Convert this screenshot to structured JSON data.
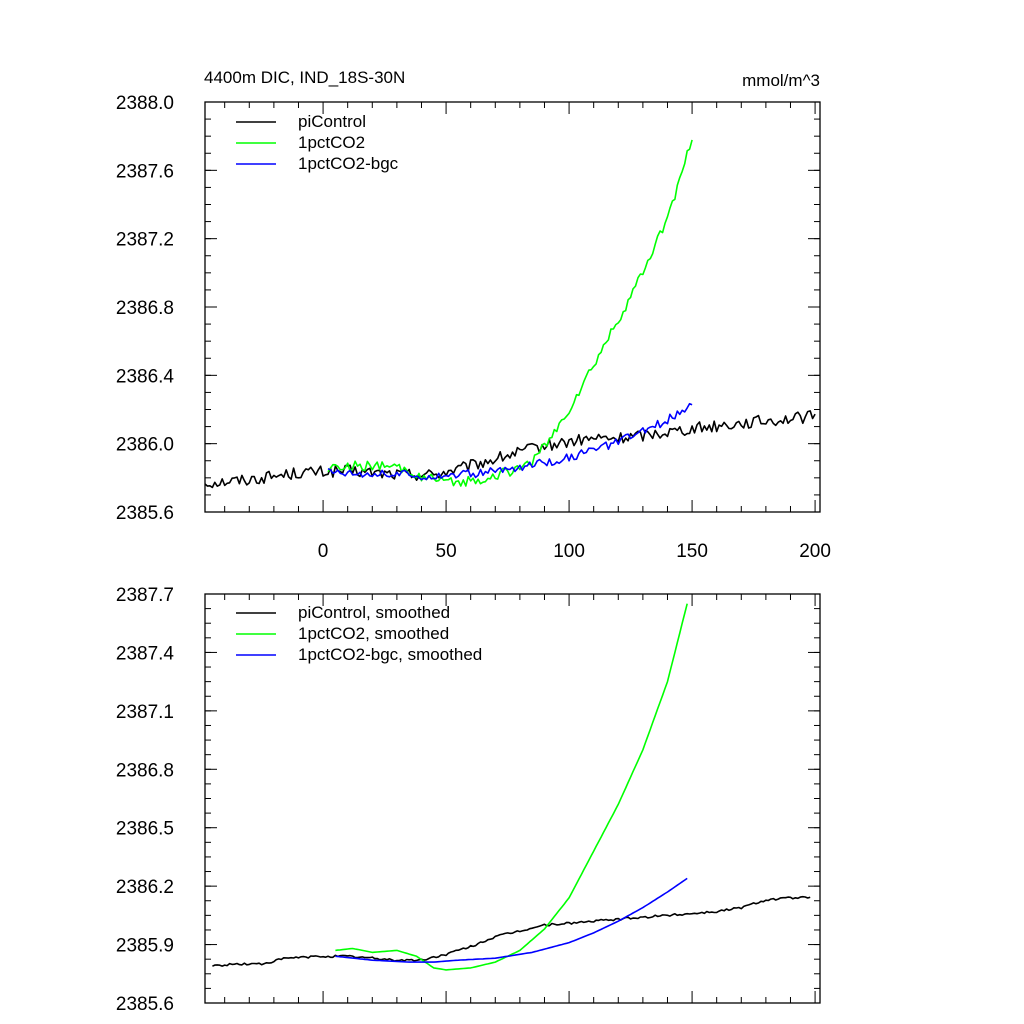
{
  "chart_data": [
    {
      "type": "line",
      "title": "4400m DIC, IND_18S-30N",
      "units": "mmol/m^3",
      "xlim": [
        -48,
        202
      ],
      "ylim": [
        2385.6,
        2388.0
      ],
      "x_ticks": [
        0,
        50,
        100,
        150,
        200
      ],
      "x_tick_labels": [
        "0",
        "50",
        "100",
        "150",
        "200"
      ],
      "y_ticks": [
        2385.6,
        2386.0,
        2386.4,
        2386.8,
        2387.2,
        2387.6,
        2388.0
      ],
      "y_tick_labels": [
        "2385.6",
        "2386.0",
        "2386.4",
        "2386.8",
        "2387.2",
        "2387.6",
        "2388.0"
      ],
      "legend_position": "top-left",
      "series": [
        {
          "name": "piControl",
          "color": "#000000",
          "noise": 0.035,
          "points": [
            [
              -48,
              2385.77
            ],
            [
              -30,
              2385.79
            ],
            [
              -10,
              2385.83
            ],
            [
              10,
              2385.84
            ],
            [
              30,
              2385.82
            ],
            [
              45,
              2385.82
            ],
            [
              55,
              2385.85
            ],
            [
              65,
              2385.89
            ],
            [
              75,
              2385.93
            ],
            [
              85,
              2385.97
            ],
            [
              95,
              2386.0
            ],
            [
              110,
              2386.03
            ],
            [
              120,
              2386.03
            ],
            [
              130,
              2386.05
            ],
            [
              150,
              2386.09
            ],
            [
              170,
              2386.12
            ],
            [
              185,
              2386.14
            ],
            [
              200,
              2386.16
            ]
          ]
        },
        {
          "name": "1pctCO2",
          "color": "#00ff00",
          "noise": 0.03,
          "points": [
            [
              2,
              2385.86
            ],
            [
              15,
              2385.87
            ],
            [
              30,
              2385.86
            ],
            [
              40,
              2385.81
            ],
            [
              50,
              2385.77
            ],
            [
              60,
              2385.78
            ],
            [
              70,
              2385.81
            ],
            [
              80,
              2385.86
            ],
            [
              85,
              2385.9
            ],
            [
              90,
              2385.98
            ],
            [
              95,
              2386.08
            ],
            [
              100,
              2386.2
            ],
            [
              110,
              2386.46
            ],
            [
              120,
              2386.72
            ],
            [
              130,
              2387.0
            ],
            [
              140,
              2387.32
            ],
            [
              150,
              2387.78
            ]
          ]
        },
        {
          "name": "1pctCO2-bgc",
          "color": "#0000ff",
          "noise": 0.025,
          "points": [
            [
              2,
              2385.84
            ],
            [
              15,
              2385.83
            ],
            [
              30,
              2385.82
            ],
            [
              45,
              2385.81
            ],
            [
              55,
              2385.82
            ],
            [
              65,
              2385.83
            ],
            [
              80,
              2385.86
            ],
            [
              90,
              2385.89
            ],
            [
              100,
              2385.92
            ],
            [
              110,
              2385.96
            ],
            [
              120,
              2386.01
            ],
            [
              130,
              2386.07
            ],
            [
              140,
              2386.14
            ],
            [
              150,
              2386.24
            ]
          ]
        }
      ]
    },
    {
      "type": "line",
      "xlim": [
        -48,
        202
      ],
      "ylim": [
        2385.6,
        2387.7
      ],
      "x_ticks": [
        0,
        50,
        100,
        150,
        200
      ],
      "y_ticks": [
        2385.6,
        2385.9,
        2386.2,
        2386.5,
        2386.8,
        2387.1,
        2387.4,
        2387.7
      ],
      "y_tick_labels": [
        "2385.6",
        "2385.9",
        "2386.2",
        "2386.5",
        "2386.8",
        "2387.1",
        "2387.4",
        "2387.7"
      ],
      "legend_position": "top-left",
      "series": [
        {
          "name": "piControl, smoothed",
          "color": "#000000",
          "noise": 0.006,
          "points": [
            [
              -45,
              2385.79
            ],
            [
              -35,
              2385.8
            ],
            [
              -25,
              2385.8
            ],
            [
              -15,
              2385.83
            ],
            [
              0,
              2385.84
            ],
            [
              10,
              2385.84
            ],
            [
              20,
              2385.83
            ],
            [
              30,
              2385.82
            ],
            [
              40,
              2385.82
            ],
            [
              50,
              2385.85
            ],
            [
              60,
              2385.89
            ],
            [
              70,
              2385.94
            ],
            [
              80,
              2385.97
            ],
            [
              90,
              2386.0
            ],
            [
              100,
              2386.01
            ],
            [
              110,
              2386.02
            ],
            [
              120,
              2386.03
            ],
            [
              130,
              2386.04
            ],
            [
              140,
              2386.05
            ],
            [
              150,
              2386.06
            ],
            [
              160,
              2386.07
            ],
            [
              170,
              2386.09
            ],
            [
              180,
              2386.13
            ],
            [
              190,
              2386.14
            ],
            [
              198,
              2386.14
            ]
          ]
        },
        {
          "name": "1pctCO2, smoothed",
          "color": "#00ff00",
          "noise": 0,
          "points": [
            [
              5,
              2385.87
            ],
            [
              12,
              2385.88
            ],
            [
              20,
              2385.86
            ],
            [
              30,
              2385.87
            ],
            [
              38,
              2385.84
            ],
            [
              45,
              2385.78
            ],
            [
              50,
              2385.77
            ],
            [
              60,
              2385.78
            ],
            [
              70,
              2385.81
            ],
            [
              80,
              2385.87
            ],
            [
              90,
              2385.98
            ],
            [
              100,
              2386.14
            ],
            [
              110,
              2386.38
            ],
            [
              120,
              2386.62
            ],
            [
              130,
              2386.9
            ],
            [
              140,
              2387.25
            ],
            [
              148,
              2387.65
            ]
          ]
        },
        {
          "name": "1pctCO2-bgc, smoothed",
          "color": "#0000ff",
          "noise": 0,
          "points": [
            [
              5,
              2385.84
            ],
            [
              20,
              2385.82
            ],
            [
              35,
              2385.81
            ],
            [
              45,
              2385.81
            ],
            [
              55,
              2385.82
            ],
            [
              70,
              2385.83
            ],
            [
              85,
              2385.86
            ],
            [
              100,
              2385.91
            ],
            [
              110,
              2385.96
            ],
            [
              120,
              2386.02
            ],
            [
              130,
              2386.09
            ],
            [
              140,
              2386.17
            ],
            [
              148,
              2386.24
            ]
          ]
        }
      ]
    }
  ]
}
